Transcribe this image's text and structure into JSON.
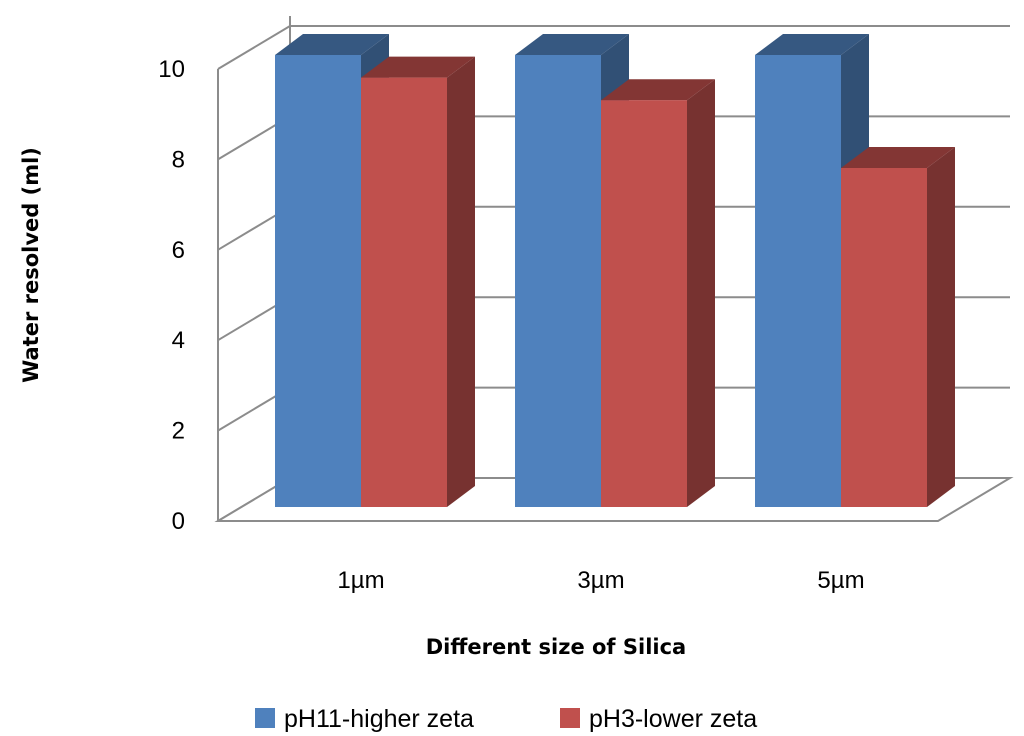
{
  "chart_data": {
    "type": "bar",
    "style": "3d-clustered",
    "title": "",
    "xlabel": "Different size of Silica",
    "ylabel": "Water resolved (ml)",
    "categories": [
      "1µm",
      "3µm",
      "5µm"
    ],
    "series": [
      {
        "name": "pH11-higher zeta",
        "values": [
          10,
          10,
          10
        ],
        "color": "#4f81bd"
      },
      {
        "name": "pH3-lower zeta",
        "values": [
          9.5,
          9,
          7.5
        ],
        "color": "#c0504d"
      }
    ],
    "yticks": [
      "0",
      "2",
      "4",
      "6",
      "8",
      "10"
    ],
    "ylim": [
      0,
      10
    ],
    "grid": true,
    "legend_position": "bottom"
  }
}
